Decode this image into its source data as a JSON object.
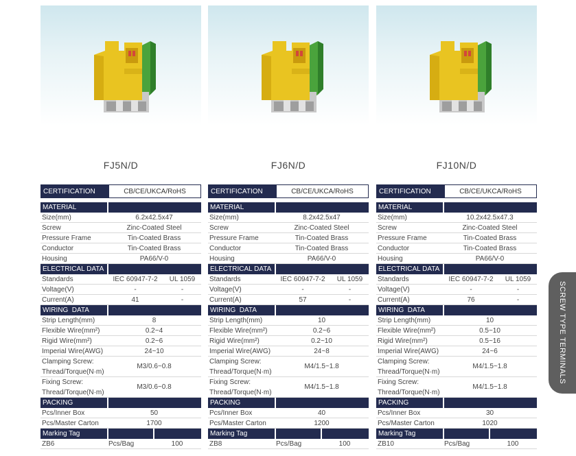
{
  "side_tab": {
    "label": "SCREW TYPE TERMINALS"
  },
  "labels": {
    "certification": "CERTIFICATION",
    "material": "MATERIAL",
    "size": "Size(mm)",
    "screw": "Screw",
    "pressure_frame": "Pressure Frame",
    "conductor": "Conductor",
    "housing": "Housing",
    "electrical_data": "ELECTRICAL DATA",
    "standards": "Standards",
    "voltage": "Voltage(V)",
    "current": "Current(A)",
    "wiring_data": "WIRING  DATA",
    "strip_length": "Strip Length(mm)",
    "flexible_wire": "Flexible Wire(mm²)",
    "rigid_wire": "Rigid Wire(mm²)",
    "imperial_wire": "Imperial Wire(AWG)",
    "clamping_screw": "Clamping Screw:\nThread/Torque(N·m)",
    "fixing_screw": "Fixing Screw:\nThread/Torque(N·m)",
    "packing": "PACKING",
    "pcs_inner_box": "Pcs/Inner Box",
    "pcs_master_carton": "Pcs/Master Carton",
    "marking_tag": "Marking Tag",
    "pcs_bag": "Pcs/Bag"
  },
  "products": [
    {
      "name": "FJ5N/D",
      "certification": "CB/CE/UKCA/RoHS",
      "size": "6.2x42.5x47",
      "screw": "Zinc-Coated Steel",
      "pressure_frame": "Tin-Coated Brass",
      "conductor": "Tin-Coated Brass",
      "housing": "PA66/V-0",
      "standard_iec": "IEC 60947-7-2",
      "standard_ul": "UL 1059",
      "voltage_iec": "-",
      "voltage_ul": "-",
      "current_iec": "41",
      "current_ul": "-",
      "strip_length": "8",
      "flexible_wire": "0.2~4",
      "rigid_wire": "0.2~6",
      "imperial_wire": "24~10",
      "clamping_screw": "M3/0.6~0.8",
      "fixing_screw": "M3/0.6~0.8",
      "pcs_inner_box": "50",
      "pcs_master_carton": "1700",
      "tag": "ZB6",
      "pcs_bag": "100"
    },
    {
      "name": "FJ6N/D",
      "certification": "CB/CE/UKCA/RoHS",
      "size": "8.2x42.5x47",
      "screw": "Zinc-Coated Steel",
      "pressure_frame": "Tin-Coated Brass",
      "conductor": "Tin-Coated Brass",
      "housing": "PA66/V-0",
      "standard_iec": "IEC 60947-7-2",
      "standard_ul": "UL 1059",
      "voltage_iec": "-",
      "voltage_ul": "-",
      "current_iec": "57",
      "current_ul": "-",
      "strip_length": "10",
      "flexible_wire": "0.2~6",
      "rigid_wire": "0.2~10",
      "imperial_wire": "24~8",
      "clamping_screw": "M4/1.5~1.8",
      "fixing_screw": "M4/1.5~1.8",
      "pcs_inner_box": "40",
      "pcs_master_carton": "1200",
      "tag": "ZB8",
      "pcs_bag": "100"
    },
    {
      "name": "FJ10N/D",
      "certification": "CB/CE/UKCA/RoHS",
      "size": "10.2x42.5x47.3",
      "screw": "Zinc-Coated Steel",
      "pressure_frame": "Tin-Coated Brass",
      "conductor": "Tin-Coated Brass",
      "housing": "PA66/V-0",
      "standard_iec": "IEC 60947-7-2",
      "standard_ul": "UL 1059",
      "voltage_iec": "-",
      "voltage_ul": "-",
      "current_iec": "76",
      "current_ul": "-",
      "strip_length": "10",
      "flexible_wire": "0.5~10",
      "rigid_wire": "0.5~16",
      "imperial_wire": "24~6",
      "clamping_screw": "M4/1.5~1.8",
      "fixing_screw": "M4/1.5~1.8",
      "pcs_inner_box": "30",
      "pcs_master_carton": "1020",
      "tag": "ZB10",
      "pcs_bag": "100"
    }
  ]
}
